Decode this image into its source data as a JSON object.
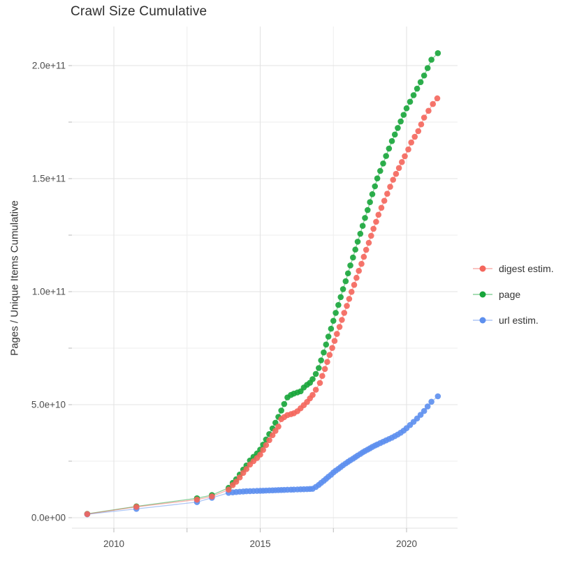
{
  "title": "Crawl Size Cumulative",
  "y_axis": {
    "title": "Pages / Unique Items Cumulative",
    "tick_labels": [
      "0.0e+00",
      "5.0e+10",
      "1.0e+11",
      "1.5e+11",
      "2.0e+11"
    ],
    "tick_values_billions": [
      0,
      50,
      100,
      150,
      200
    ],
    "minor_tick_values_billions": [
      25,
      75,
      125,
      175
    ]
  },
  "x_axis": {
    "tick_labels": [
      "2010",
      "2015",
      "2020"
    ],
    "tick_values": [
      2010,
      2015,
      2020
    ],
    "minor_tick_values": [
      2012.5,
      2017.5
    ]
  },
  "legend": {
    "items": [
      {
        "label": "digest estim.",
        "color": "#f4665c"
      },
      {
        "label": "page",
        "color": "#17a53a"
      },
      {
        "label": "url estim.",
        "color": "#5d8fee"
      }
    ]
  },
  "colors": {
    "grid_major": "#e3e3e3",
    "grid_minor": "#eeeeee",
    "tick": "#b8b8b8",
    "tick_label": "#4d4d4d",
    "spine": "#e0e0e0"
  },
  "chart_data": {
    "type": "scatter",
    "title": "Crawl Size Cumulative",
    "xlabel": "",
    "ylabel": "Pages / Unique Items Cumulative",
    "x_unit": "year (decimal)",
    "y_unit": "billions of pages / unique items (1e9)",
    "xlim": [
      2008.57,
      2021.74
    ],
    "ylim_billions": [
      0,
      217
    ],
    "grid": true,
    "legend_position": "right-center",
    "series": [
      {
        "name": "page",
        "color": "#17a53a",
        "points": [
          [
            2009.09,
            1.7
          ],
          [
            2010.77,
            5.0
          ],
          [
            2012.84,
            8.6
          ],
          [
            2013.35,
            10.0
          ],
          [
            2013.92,
            13.2
          ],
          [
            2014.06,
            15.4
          ],
          [
            2014.18,
            17.0
          ],
          [
            2014.3,
            19.1
          ],
          [
            2014.42,
            21.3
          ],
          [
            2014.53,
            23.1
          ],
          [
            2014.65,
            25.3
          ],
          [
            2014.77,
            26.9
          ],
          [
            2014.89,
            28.4
          ],
          [
            2015.0,
            30.1
          ],
          [
            2015.1,
            32.3
          ],
          [
            2015.2,
            34.6
          ],
          [
            2015.31,
            37.0
          ],
          [
            2015.42,
            39.5
          ],
          [
            2015.52,
            42.0
          ],
          [
            2015.62,
            44.6
          ],
          [
            2015.72,
            47.4
          ],
          [
            2015.82,
            50.3
          ],
          [
            2015.93,
            53.2
          ],
          [
            2016.05,
            54.3
          ],
          [
            2016.15,
            54.9
          ],
          [
            2016.27,
            55.4
          ],
          [
            2016.38,
            55.9
          ],
          [
            2016.49,
            57.6
          ],
          [
            2016.6,
            58.8
          ],
          [
            2016.7,
            59.7
          ],
          [
            2016.79,
            61.3
          ],
          [
            2016.9,
            63.6
          ],
          [
            2017.0,
            66.2
          ],
          [
            2017.08,
            69.6
          ],
          [
            2017.17,
            73.1
          ],
          [
            2017.25,
            76.6
          ],
          [
            2017.33,
            80.1
          ],
          [
            2017.42,
            83.6
          ],
          [
            2017.5,
            87.1
          ],
          [
            2017.58,
            90.6
          ],
          [
            2017.67,
            94.1
          ],
          [
            2017.75,
            97.6
          ],
          [
            2017.83,
            101.1
          ],
          [
            2017.92,
            104.6
          ],
          [
            2018.0,
            108.1
          ],
          [
            2018.08,
            111.6
          ],
          [
            2018.17,
            115.1
          ],
          [
            2018.25,
            118.6
          ],
          [
            2018.33,
            122.1
          ],
          [
            2018.42,
            125.6
          ],
          [
            2018.5,
            129.1
          ],
          [
            2018.58,
            132.6
          ],
          [
            2018.67,
            136.1
          ],
          [
            2018.75,
            139.6
          ],
          [
            2018.83,
            143.1
          ],
          [
            2018.92,
            146.6
          ],
          [
            2019.0,
            150.1
          ],
          [
            2019.1,
            153.4
          ],
          [
            2019.2,
            156.7
          ],
          [
            2019.3,
            160.0
          ],
          [
            2019.4,
            163.3
          ],
          [
            2019.5,
            166.6
          ],
          [
            2019.6,
            169.5
          ],
          [
            2019.7,
            172.4
          ],
          [
            2019.8,
            175.3
          ],
          [
            2019.9,
            178.2
          ],
          [
            2020.0,
            181.1
          ],
          [
            2020.12,
            184.0
          ],
          [
            2020.24,
            186.9
          ],
          [
            2020.36,
            189.8
          ],
          [
            2020.48,
            192.7
          ],
          [
            2020.6,
            195.6
          ],
          [
            2020.72,
            198.9
          ],
          [
            2020.85,
            202.6
          ],
          [
            2021.07,
            205.5
          ]
        ]
      },
      {
        "name": "url estim.",
        "color": "#5d8fee",
        "points": [
          [
            2009.09,
            1.5
          ],
          [
            2010.77,
            3.9
          ],
          [
            2012.84,
            6.9
          ],
          [
            2013.35,
            8.8
          ],
          [
            2013.92,
            11.0
          ],
          [
            2014.06,
            11.2
          ],
          [
            2014.18,
            11.35
          ],
          [
            2014.3,
            11.5
          ],
          [
            2014.42,
            11.6
          ],
          [
            2014.53,
            11.7
          ],
          [
            2014.65,
            11.75
          ],
          [
            2014.77,
            11.8
          ],
          [
            2014.89,
            11.85
          ],
          [
            2015.0,
            11.9
          ],
          [
            2015.1,
            11.95
          ],
          [
            2015.2,
            12.0
          ],
          [
            2015.31,
            12.05
          ],
          [
            2015.42,
            12.1
          ],
          [
            2015.52,
            12.15
          ],
          [
            2015.62,
            12.2
          ],
          [
            2015.72,
            12.25
          ],
          [
            2015.82,
            12.3
          ],
          [
            2015.93,
            12.35
          ],
          [
            2016.05,
            12.4
          ],
          [
            2016.15,
            12.45
          ],
          [
            2016.27,
            12.5
          ],
          [
            2016.38,
            12.55
          ],
          [
            2016.49,
            12.6
          ],
          [
            2016.6,
            12.65
          ],
          [
            2016.7,
            12.7
          ],
          [
            2016.79,
            12.8
          ],
          [
            2016.9,
            13.6
          ],
          [
            2017.0,
            14.5
          ],
          [
            2017.08,
            15.4
          ],
          [
            2017.17,
            16.3
          ],
          [
            2017.25,
            17.2
          ],
          [
            2017.33,
            18.1
          ],
          [
            2017.42,
            19.0
          ],
          [
            2017.5,
            20.0
          ],
          [
            2017.58,
            20.8
          ],
          [
            2017.67,
            21.6
          ],
          [
            2017.75,
            22.4
          ],
          [
            2017.83,
            23.2
          ],
          [
            2017.92,
            24.0
          ],
          [
            2018.0,
            24.7
          ],
          [
            2018.08,
            25.4
          ],
          [
            2018.17,
            26.1
          ],
          [
            2018.25,
            26.8
          ],
          [
            2018.33,
            27.5
          ],
          [
            2018.42,
            28.2
          ],
          [
            2018.5,
            28.9
          ],
          [
            2018.58,
            29.5
          ],
          [
            2018.67,
            30.1
          ],
          [
            2018.75,
            30.7
          ],
          [
            2018.83,
            31.3
          ],
          [
            2018.92,
            31.9
          ],
          [
            2019.0,
            32.4
          ],
          [
            2019.1,
            33.0
          ],
          [
            2019.2,
            33.6
          ],
          [
            2019.3,
            34.2
          ],
          [
            2019.4,
            34.8
          ],
          [
            2019.5,
            35.4
          ],
          [
            2019.6,
            36.1
          ],
          [
            2019.7,
            36.8
          ],
          [
            2019.8,
            37.6
          ],
          [
            2019.9,
            38.5
          ],
          [
            2020.0,
            39.6
          ],
          [
            2020.12,
            41.0
          ],
          [
            2020.24,
            42.4
          ],
          [
            2020.36,
            43.9
          ],
          [
            2020.48,
            45.5
          ],
          [
            2020.6,
            47.2
          ],
          [
            2020.72,
            49.2
          ],
          [
            2020.85,
            51.3
          ],
          [
            2021.07,
            53.7
          ]
        ]
      },
      {
        "name": "digest estim.",
        "color": "#f4665c",
        "points": [
          [
            2009.09,
            1.6
          ],
          [
            2010.77,
            4.8
          ],
          [
            2012.84,
            8.0
          ],
          [
            2013.35,
            9.4
          ],
          [
            2013.92,
            12.4
          ],
          [
            2014.06,
            14.4
          ],
          [
            2014.18,
            15.9
          ],
          [
            2014.3,
            17.8
          ],
          [
            2014.42,
            19.8
          ],
          [
            2014.53,
            21.5
          ],
          [
            2014.65,
            23.5
          ],
          [
            2014.77,
            25.0
          ],
          [
            2014.89,
            26.4
          ],
          [
            2015.0,
            27.9
          ],
          [
            2015.1,
            30.0
          ],
          [
            2015.2,
            32.1
          ],
          [
            2015.31,
            34.3
          ],
          [
            2015.42,
            36.5
          ],
          [
            2015.52,
            38.4
          ],
          [
            2015.62,
            40.3
          ],
          [
            2015.72,
            43.6
          ],
          [
            2015.82,
            44.5
          ],
          [
            2015.93,
            45.4
          ],
          [
            2016.05,
            45.8
          ],
          [
            2016.15,
            46.2
          ],
          [
            2016.27,
            47.1
          ],
          [
            2016.38,
            48.4
          ],
          [
            2016.49,
            49.8
          ],
          [
            2016.6,
            51.2
          ],
          [
            2016.7,
            52.8
          ],
          [
            2016.79,
            54.3
          ],
          [
            2016.9,
            56.6
          ],
          [
            2017.04,
            59.6
          ],
          [
            2017.12,
            62.7
          ],
          [
            2017.21,
            65.8
          ],
          [
            2017.29,
            68.9
          ],
          [
            2017.37,
            72.0
          ],
          [
            2017.46,
            75.1
          ],
          [
            2017.54,
            78.2
          ],
          [
            2017.62,
            81.3
          ],
          [
            2017.71,
            84.4
          ],
          [
            2017.79,
            87.5
          ],
          [
            2017.87,
            90.6
          ],
          [
            2017.96,
            93.7
          ],
          [
            2018.04,
            96.8
          ],
          [
            2018.12,
            99.9
          ],
          [
            2018.21,
            103.0
          ],
          [
            2018.29,
            106.1
          ],
          [
            2018.37,
            109.2
          ],
          [
            2018.46,
            112.3
          ],
          [
            2018.54,
            115.4
          ],
          [
            2018.62,
            118.5
          ],
          [
            2018.71,
            121.6
          ],
          [
            2018.79,
            124.7
          ],
          [
            2018.87,
            127.8
          ],
          [
            2018.96,
            130.9
          ],
          [
            2019.04,
            134.0
          ],
          [
            2019.14,
            137.1
          ],
          [
            2019.24,
            140.2
          ],
          [
            2019.34,
            143.3
          ],
          [
            2019.44,
            146.4
          ],
          [
            2019.54,
            149.5
          ],
          [
            2019.64,
            152.1
          ],
          [
            2019.74,
            154.7
          ],
          [
            2019.84,
            157.3
          ],
          [
            2019.94,
            159.9
          ],
          [
            2020.06,
            162.9
          ],
          [
            2020.16,
            166.0
          ],
          [
            2020.28,
            168.5
          ],
          [
            2020.4,
            171.0
          ],
          [
            2020.5,
            174.0
          ],
          [
            2020.6,
            177.0
          ],
          [
            2020.75,
            180.0
          ],
          [
            2020.9,
            183.0
          ],
          [
            2021.05,
            185.5
          ]
        ]
      }
    ]
  }
}
